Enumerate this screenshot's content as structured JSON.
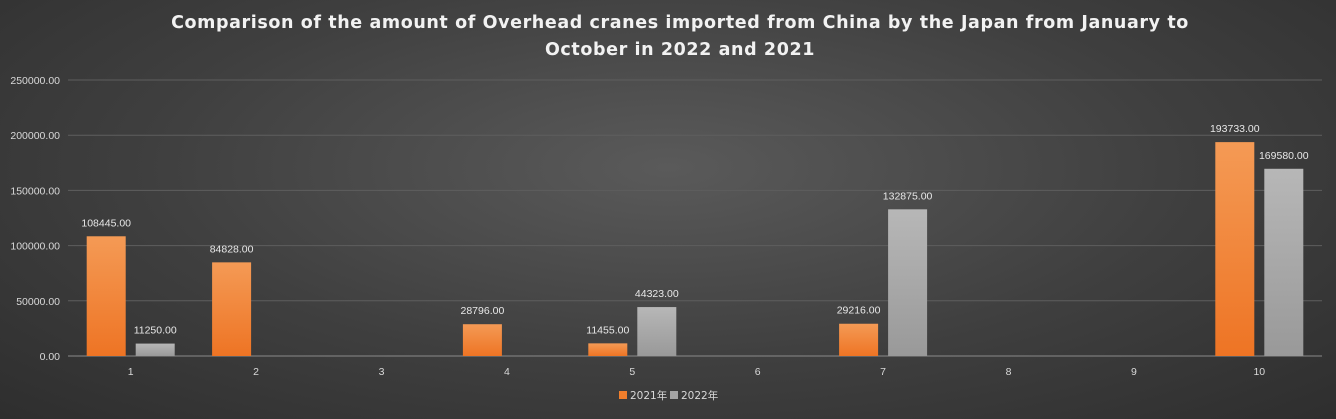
{
  "chart_data": {
    "type": "bar",
    "title": "Comparison of the amount of Overhead cranes imported from China by the Japan from January to October in 2022 and 2021",
    "categories": [
      "1",
      "2",
      "3",
      "4",
      "5",
      "6",
      "7",
      "8",
      "9",
      "10"
    ],
    "series": [
      {
        "name": "2021年",
        "color": "#f07e2c",
        "values": [
          108445,
          84828,
          null,
          28796,
          11455,
          null,
          29216,
          null,
          null,
          193733
        ],
        "labels": [
          "108445.00",
          "84828.00",
          "",
          "28796.00",
          "11455.00",
          "",
          "29216.00",
          "",
          "",
          "193733.00"
        ]
      },
      {
        "name": "2022年",
        "color": "#a5a5a5",
        "values": [
          11250,
          null,
          null,
          null,
          44323,
          null,
          132875,
          null,
          null,
          169580
        ],
        "labels": [
          "11250.00",
          "",
          "",
          "",
          "44323.00",
          "",
          "132875.00",
          "",
          "",
          "169580.00"
        ]
      }
    ],
    "ylim": [
      0,
      250000
    ],
    "yticks": [
      "0.00",
      "50000.00",
      "100000.00",
      "150000.00",
      "200000.00",
      "250000.00"
    ],
    "ytick_values": [
      0,
      50000,
      100000,
      150000,
      200000,
      250000
    ],
    "xlabel": "",
    "ylabel": "",
    "grid": true,
    "legend": "bottom-center"
  }
}
